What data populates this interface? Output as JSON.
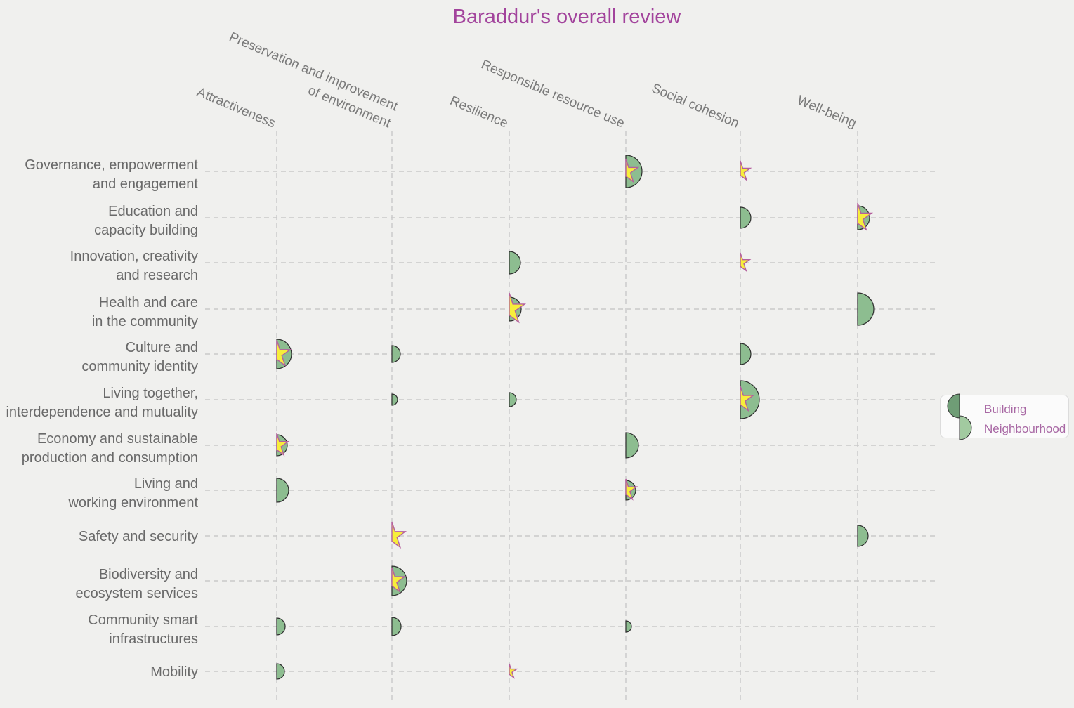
{
  "title": "Baraddur's overall review",
  "legend": {
    "items": [
      {
        "label": "Building"
      },
      {
        "label": "Neighbourhood"
      }
    ]
  },
  "colors": {
    "background": "#f0f0ee",
    "title": "#a2439c",
    "grid": "#c9c9c9",
    "circle_fill": "#8dbd90",
    "circle_stroke": "#2d2d2d",
    "star_fill": "#f7ee3b",
    "star_stroke": "#b45f9d",
    "legend_building": "#6f9d76",
    "legend_neighbourhood": "#a2caa0",
    "legend_text": "#a868a4",
    "row_label": "#696969",
    "col_label": "#7a7a7a"
  },
  "chart_data": {
    "type": "scatter",
    "title": "Baraddur's overall review",
    "legend_entries": [
      "Building",
      "Neighbourhood"
    ],
    "legend_position": "right",
    "grid": true,
    "marker_encoding": "Right-facing green semicircle = Neighbourhood score (size proportional to value, radius in px); yellow right-half star = Building rating marker (size in px). Empty cells have no marker.",
    "columns": [
      "Attractiveness",
      "Preservation and improvement of environment",
      "Resilience",
      "Responsible resource use",
      "Social cohesion",
      "Well-being"
    ],
    "column_label_lines": [
      [
        "Attractiveness"
      ],
      [
        "Preservation and improvement",
        "of environment"
      ],
      [
        "Resilience"
      ],
      [
        "Responsible resource use"
      ],
      [
        "Social cohesion"
      ],
      [
        "Well-being"
      ]
    ],
    "rows": [
      "Governance, empowerment and engagement",
      "Education and capacity building",
      "Innovation, creativity and research",
      "Health and care in the community",
      "Culture and community identity",
      "Living together, interdependence and mutuality",
      "Economy and sustainable production and consumption",
      "Living and working environment",
      "Safety and security",
      "Biodiversity and ecosystem services",
      "Community smart infrastructures",
      "Mobility"
    ],
    "row_label_lines": [
      [
        "Governance, empowerment",
        "and engagement"
      ],
      [
        "Education and",
        "capacity building"
      ],
      [
        "Innovation, creativity",
        "and research"
      ],
      [
        "Health and care",
        "in the community"
      ],
      [
        "Culture and",
        "community identity"
      ],
      [
        "Living together,",
        "interdependence and mutuality"
      ],
      [
        "Economy and sustainable",
        "production and consumption"
      ],
      [
        "Living and",
        "working environment"
      ],
      [
        "Safety and security"
      ],
      [
        "Biodiversity and",
        "ecosystem services"
      ],
      [
        "Community smart",
        "infrastructures"
      ],
      [
        "Mobility"
      ]
    ],
    "points": [
      {
        "r": 0,
        "c": 3,
        "row": "Governance, empowerment and engagement",
        "col": "Responsible resource use",
        "semicircle_r": 23,
        "star_r": 18
      },
      {
        "r": 0,
        "c": 4,
        "row": "Governance, empowerment and engagement",
        "col": "Social cohesion",
        "semicircle_r": null,
        "star_r": 15
      },
      {
        "r": 1,
        "c": 4,
        "row": "Education and capacity building",
        "col": "Social cohesion",
        "semicircle_r": 15,
        "star_r": null
      },
      {
        "r": 1,
        "c": 5,
        "row": "Education and capacity building",
        "col": "Well-being",
        "semicircle_r": 17,
        "star_r": 21
      },
      {
        "r": 2,
        "c": 2,
        "row": "Innovation, creativity and research",
        "col": "Resilience",
        "semicircle_r": 16,
        "star_r": null
      },
      {
        "r": 2,
        "c": 4,
        "row": "Innovation, creativity and research",
        "col": "Social cohesion",
        "semicircle_r": null,
        "star_r": 14
      },
      {
        "r": 3,
        "c": 2,
        "row": "Health and care in the community",
        "col": "Resilience",
        "semicircle_r": 17,
        "star_r": 23
      },
      {
        "r": 3,
        "c": 5,
        "row": "Health and care in the community",
        "col": "Well-being",
        "semicircle_r": 23,
        "star_r": null
      },
      {
        "r": 4,
        "c": 0,
        "row": "Culture and community identity",
        "col": "Attractiveness",
        "semicircle_r": 21,
        "star_r": 20
      },
      {
        "r": 4,
        "c": 1,
        "row": "Culture and community identity",
        "col": "Preservation and improvement of environment",
        "semicircle_r": 12,
        "star_r": null
      },
      {
        "r": 4,
        "c": 4,
        "row": "Culture and community identity",
        "col": "Social cohesion",
        "semicircle_r": 15,
        "star_r": null
      },
      {
        "r": 5,
        "c": 1,
        "row": "Living together, interdependence and mutuality",
        "col": "Preservation and improvement of environment",
        "semicircle_r": 8,
        "star_r": null
      },
      {
        "r": 5,
        "c": 2,
        "row": "Living together, interdependence and mutuality",
        "col": "Resilience",
        "semicircle_r": 10,
        "star_r": null
      },
      {
        "r": 5,
        "c": 4,
        "row": "Living together, interdependence and mutuality",
        "col": "Social cohesion",
        "semicircle_r": 27,
        "star_r": 19
      },
      {
        "r": 6,
        "c": 0,
        "row": "Economy and sustainable production and consumption",
        "col": "Attractiveness",
        "semicircle_r": 15,
        "star_r": 17
      },
      {
        "r": 6,
        "c": 3,
        "row": "Economy and sustainable production and consumption",
        "col": "Responsible resource use",
        "semicircle_r": 18,
        "star_r": null
      },
      {
        "r": 7,
        "c": 0,
        "row": "Living and working environment",
        "col": "Attractiveness",
        "semicircle_r": 17,
        "star_r": null
      },
      {
        "r": 7,
        "c": 3,
        "row": "Living and working environment",
        "col": "Responsible resource use",
        "semicircle_r": 14,
        "star_r": 16
      },
      {
        "r": 8,
        "c": 1,
        "row": "Safety and security",
        "col": "Preservation and improvement of environment",
        "semicircle_r": null,
        "star_r": 20
      },
      {
        "r": 8,
        "c": 5,
        "row": "Safety and security",
        "col": "Well-being",
        "semicircle_r": 15,
        "star_r": null
      },
      {
        "r": 9,
        "c": 1,
        "row": "Biodiversity and ecosystem services",
        "col": "Preservation and improvement of environment",
        "semicircle_r": 21,
        "star_r": 19
      },
      {
        "r": 10,
        "c": 0,
        "row": "Community smart infrastructures",
        "col": "Attractiveness",
        "semicircle_r": 12,
        "star_r": null
      },
      {
        "r": 10,
        "c": 1,
        "row": "Community smart infrastructures",
        "col": "Preservation and improvement of environment",
        "semicircle_r": 13,
        "star_r": null
      },
      {
        "r": 10,
        "c": 3,
        "row": "Community smart infrastructures",
        "col": "Responsible resource use",
        "semicircle_r": 8,
        "star_r": null
      },
      {
        "r": 11,
        "c": 0,
        "row": "Mobility",
        "col": "Attractiveness",
        "semicircle_r": 11,
        "star_r": null
      },
      {
        "r": 11,
        "c": 2,
        "row": "Mobility",
        "col": "Resilience",
        "semicircle_r": null,
        "star_r": 11
      }
    ]
  }
}
